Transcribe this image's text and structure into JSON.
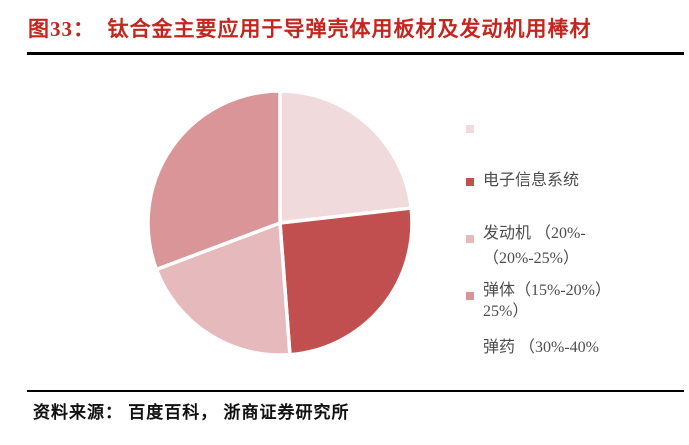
{
  "header": {
    "title": "图33：  钛合金主要应用于导弹壳体用板材及发动机用棒材"
  },
  "footer": {
    "source": "资料来源： 百度百科， 浙商证券研究所"
  },
  "colors": {
    "title_red": "#C3261F",
    "rule_black": "#000000",
    "legend_text": "#4D4D4D",
    "slice_gap_white": "#FFFFFF"
  },
  "chart_data": {
    "type": "pie",
    "title": "钛合金主要应用于导弹壳体用板材及发动机用棒材",
    "legend_position": "right",
    "start_angle_deg": 0,
    "direction": "clockwise",
    "slices": [
      {
        "label": "电子信息系统",
        "share_range": "20%-25%",
        "share_mid_pct": 22.5,
        "drawn_angle_deg": 83.5,
        "color": "#F0DADB"
      },
      {
        "label": "发动机",
        "share_range": "20%-25%",
        "share_mid_pct": 22.5,
        "drawn_angle_deg": 92.2,
        "color": "#C14F4F"
      },
      {
        "label": "弹体",
        "share_range": "15%-20%",
        "share_mid_pct": 17.5,
        "drawn_angle_deg": 73.7,
        "color": "#E6B9BC"
      },
      {
        "label": "弹药",
        "share_range": "30%-40%",
        "share_mid_pct": 35.0,
        "drawn_angle_deg": 110.6,
        "color": "#D99598"
      }
    ]
  },
  "legend": {
    "items": [
      {
        "lines": [
          "电子信息系统",
          "（20%-25%）"
        ]
      },
      {
        "lines": [
          "发动机 （20%-",
          "25%）"
        ]
      },
      {
        "lines": [
          "弹体（15%-20%）",
          ""
        ]
      },
      {
        "lines": [
          "弹药 （30%-40%",
          ""
        ]
      }
    ]
  }
}
